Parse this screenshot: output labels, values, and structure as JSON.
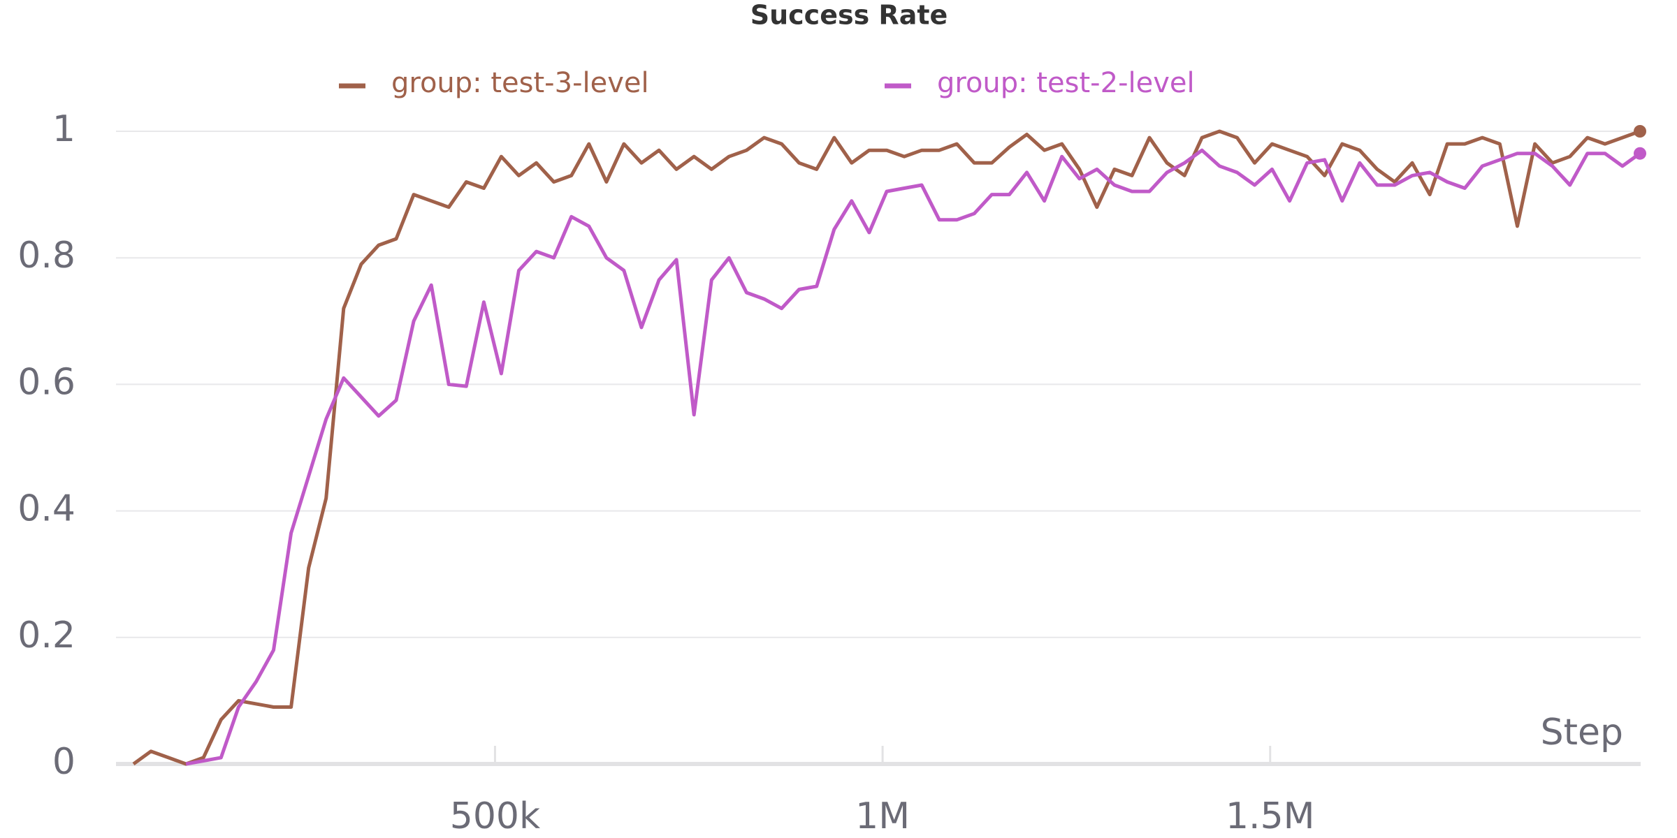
{
  "chart_data": {
    "type": "line",
    "title": "Success Rate",
    "x_label": "Step",
    "x": [
      33500,
      56100,
      78700,
      101300,
      123900,
      146500,
      169100,
      191700,
      214300,
      236900,
      259500,
      282100,
      304700,
      327300,
      349900,
      372500,
      395100,
      417700,
      440300,
      462900,
      485500,
      508100,
      530700,
      553300,
      575900,
      598500,
      621100,
      643700,
      666300,
      688900,
      711500,
      734100,
      756700,
      779300,
      801900,
      824500,
      847100,
      869700,
      892300,
      914900,
      937500,
      960100,
      982700,
      1005300,
      1027900,
      1050500,
      1073100,
      1095700,
      1118300,
      1140900,
      1163500,
      1186100,
      1208700,
      1231300,
      1253900,
      1276500,
      1299100,
      1321700,
      1344300,
      1366900,
      1389500,
      1412100,
      1434700,
      1457300,
      1479900,
      1502500,
      1525100,
      1547700,
      1570300,
      1592900,
      1615500,
      1638100,
      1660700,
      1683300,
      1705900,
      1728500,
      1751100,
      1773700,
      1796300,
      1818900,
      1841500,
      1864100,
      1886700,
      1909300,
      1931900,
      1954500,
      1977100
    ],
    "series": [
      {
        "name": "group: test-3-level",
        "color": "#a0614a",
        "values": [
          0,
          0.02,
          0.01,
          0,
          0.01,
          0.07,
          0.1,
          0.095,
          0.09,
          0.09,
          0.31,
          0.42,
          0.72,
          0.79,
          0.82,
          0.83,
          0.9,
          0.89,
          0.88,
          0.92,
          0.91,
          0.96,
          0.93,
          0.95,
          0.92,
          0.93,
          0.98,
          0.92,
          0.98,
          0.95,
          0.97,
          0.94,
          0.96,
          0.94,
          0.96,
          0.97,
          0.99,
          0.98,
          0.95,
          0.94,
          0.99,
          0.95,
          0.97,
          0.97,
          0.96,
          0.97,
          0.97,
          0.98,
          0.95,
          0.95,
          0.975,
          0.995,
          0.97,
          0.98,
          0.94,
          0.88,
          0.94,
          0.93,
          0.99,
          0.95,
          0.93,
          0.99,
          1,
          0.99,
          0.95,
          0.98,
          0.97,
          0.96,
          0.93,
          0.98,
          0.97,
          0.94,
          0.92,
          0.95,
          0.9,
          0.98,
          0.98,
          0.99,
          0.98,
          0.85,
          0.98,
          0.95,
          0.96,
          0.99,
          0.98,
          0.99,
          1
        ]
      },
      {
        "name": "group: test-2-level",
        "color": "#c05ac8",
        "values": [
          null,
          null,
          null,
          0,
          0.005,
          0.01,
          0.09,
          0.13,
          0.18,
          0.365,
          0.455,
          0.545,
          0.61,
          0.58,
          0.55,
          0.575,
          0.7,
          0.757,
          0.6,
          0.597,
          0.73,
          0.617,
          0.78,
          0.81,
          0.8,
          0.865,
          0.85,
          0.8,
          0.78,
          0.69,
          0.765,
          0.797,
          0.552,
          0.765,
          0.8,
          0.745,
          0.735,
          0.72,
          0.75,
          0.755,
          0.845,
          0.89,
          0.84,
          0.905,
          0.91,
          0.915,
          0.86,
          0.86,
          0.87,
          0.9,
          0.9,
          0.935,
          0.89,
          0.96,
          0.925,
          0.94,
          0.915,
          0.905,
          0.905,
          0.935,
          0.95,
          0.97,
          0.945,
          0.935,
          0.915,
          0.94,
          0.89,
          0.95,
          0.955,
          0.89,
          0.95,
          0.915,
          0.915,
          0.93,
          0.935,
          0.92,
          0.91,
          0.945,
          0.955,
          0.965,
          0.965,
          0.945,
          0.915,
          0.965,
          0.965,
          0.945,
          0.965
        ]
      }
    ],
    "xlim": [
      11000,
      1978000
    ],
    "ylim": [
      0,
      1
    ],
    "xticks": [
      {
        "value": 500000,
        "label": "500k"
      },
      {
        "value": 1000000,
        "label": "1M"
      },
      {
        "value": 1500000,
        "label": "1.5M"
      }
    ],
    "yticks": [
      0,
      0.2,
      0.4,
      0.6,
      0.8,
      1
    ],
    "grid": true
  }
}
